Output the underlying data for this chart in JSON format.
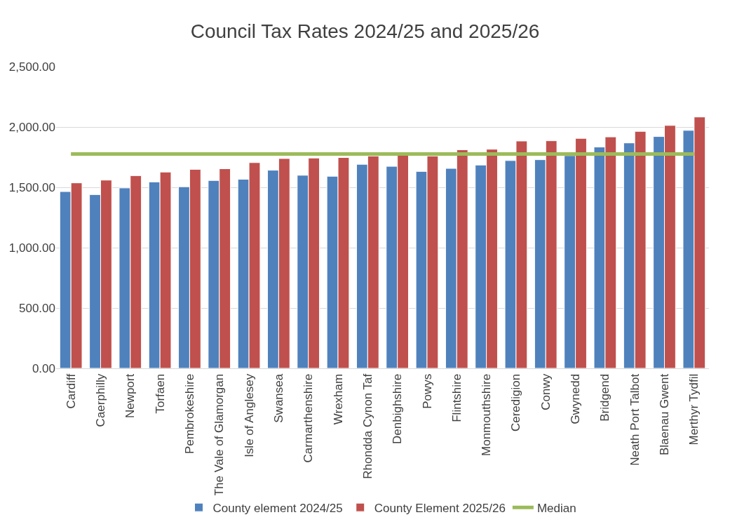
{
  "chart_data": {
    "type": "bar",
    "title": "Council Tax Rates 2024/25 and 2025/26",
    "categories": [
      "Cardiff",
      "Caerphilly",
      "Newport",
      "Torfaen",
      "Pembrokeshire",
      "The Vale of Glamorgan",
      "Isle of Anglesey",
      "Swansea",
      "Carmarthenshire",
      "Wrexham",
      "Rhondda Cynon Taf",
      "Denbighshire",
      "Powys",
      "Flintshire",
      "Monmouthshire",
      "Ceredigion",
      "Conwy",
      "Gwynedd",
      "Bridgend",
      "Neath Port Talbot",
      "Blaenau Gwent",
      "Merthyr Tydfil"
    ],
    "series": [
      {
        "name": "County element 2024/25",
        "color": "#4f81bd",
        "values": [
          1465,
          1440,
          1495,
          1545,
          1505,
          1557,
          1567,
          1642,
          1600,
          1592,
          1691,
          1674,
          1632,
          1657,
          1685,
          1722,
          1729,
          1763,
          1834,
          1868,
          1921,
          1972
        ]
      },
      {
        "name": "County Element 2025/26",
        "color": "#c0504d",
        "values": [
          1537,
          1560,
          1597,
          1627,
          1649,
          1654,
          1705,
          1739,
          1743,
          1747,
          1760,
          1765,
          1760,
          1811,
          1816,
          1884,
          1886,
          1906,
          1918,
          1964,
          2013,
          2083
        ]
      },
      {
        "name": "Median",
        "type": "line",
        "color": "#9bbb59",
        "values": [
          1776,
          1776,
          1776,
          1776,
          1776,
          1776,
          1776,
          1776,
          1776,
          1776,
          1776,
          1776,
          1776,
          1776,
          1776,
          1776,
          1776,
          1776,
          1776,
          1776,
          1776,
          1776
        ]
      }
    ],
    "ylim": [
      0,
      2500
    ],
    "yticks": [
      {
        "value": 0,
        "label": "0.00"
      },
      {
        "value": 500,
        "label": "500.00"
      },
      {
        "value": 1000,
        "label": "1,000.00"
      },
      {
        "value": 1500,
        "label": "1,500.00"
      },
      {
        "value": 2000,
        "label": "2,000.00"
      },
      {
        "value": 2500,
        "label": "2,500.00"
      }
    ],
    "grid": "y",
    "legend": "bottom"
  }
}
